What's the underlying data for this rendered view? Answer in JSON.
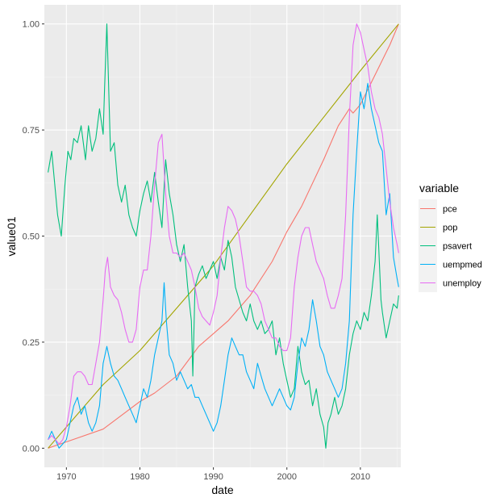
{
  "chart_data": {
    "type": "line",
    "title": "",
    "xlabel": "date",
    "ylabel": "value01",
    "xlim": [
      1967,
      2015.5
    ],
    "ylim": [
      0,
      1
    ],
    "x_ticks": [
      1970,
      1980,
      1990,
      2000,
      2010
    ],
    "x_tick_labels": [
      "1970",
      "1980",
      "1990",
      "2000",
      "2010"
    ],
    "y_ticks": [
      0,
      0.25,
      0.5,
      0.75,
      1
    ],
    "y_tick_labels": [
      "0.00",
      "0.25",
      "0.50",
      "0.75",
      "1.00"
    ],
    "legend": {
      "title": "variable",
      "position": "right"
    },
    "series": [
      {
        "name": "pce",
        "color": "#F8766D",
        "x": [
          1967.5,
          1970,
          1975,
          1980,
          1982,
          1985,
          1988,
          1990,
          1992,
          1995,
          1998,
          2000,
          2002,
          2005,
          2007,
          2008.5,
          2009,
          2010,
          2012,
          2014,
          2015.2
        ],
        "y": [
          0.0,
          0.015,
          0.045,
          0.11,
          0.13,
          0.17,
          0.24,
          0.27,
          0.3,
          0.36,
          0.44,
          0.51,
          0.57,
          0.68,
          0.76,
          0.8,
          0.79,
          0.81,
          0.88,
          0.95,
          1.0
        ]
      },
      {
        "name": "pop",
        "color": "#A3A500",
        "x": [
          1967.5,
          1970,
          1975,
          1980,
          1985,
          1990,
          1995,
          2000,
          2005,
          2010,
          2015.2
        ],
        "y": [
          0.0,
          0.05,
          0.15,
          0.23,
          0.33,
          0.43,
          0.55,
          0.67,
          0.78,
          0.89,
          1.0
        ]
      },
      {
        "name": "psavert",
        "color": "#00BF7D",
        "x": [
          1967.5,
          1968,
          1968.8,
          1969.3,
          1969.8,
          1970.2,
          1970.6,
          1971,
          1971.5,
          1972,
          1972.6,
          1973,
          1973.5,
          1974,
          1974.5,
          1975,
          1975.2,
          1975.5,
          1976,
          1976.5,
          1977,
          1977.5,
          1978,
          1978.5,
          1979,
          1979.5,
          1980,
          1980.5,
          1981,
          1981.5,
          1982,
          1982.5,
          1983,
          1983.5,
          1984,
          1984.5,
          1985,
          1985.5,
          1986,
          1986.5,
          1987,
          1987.2,
          1987.5,
          1988,
          1988.5,
          1989,
          1989.5,
          1990,
          1990.5,
          1991,
          1991.5,
          1992,
          1992.5,
          1993,
          1993.5,
          1994,
          1994.5,
          1995,
          1995.5,
          1996,
          1996.5,
          1997,
          1997.5,
          1998,
          1998.5,
          1999,
          1999.5,
          2000,
          2000.5,
          2001,
          2001.5,
          2002,
          2002.5,
          2003,
          2003.5,
          2004,
          2004.5,
          2005,
          2005.3,
          2005.6,
          2006,
          2006.5,
          2007,
          2007.5,
          2008,
          2008.5,
          2009,
          2009.5,
          2010,
          2010.5,
          2011,
          2011.5,
          2012,
          2012.3,
          2012.5,
          2012.8,
          2013,
          2013.5,
          2014,
          2014.5,
          2015,
          2015.2
        ],
        "y": [
          0.65,
          0.7,
          0.55,
          0.5,
          0.62,
          0.7,
          0.68,
          0.73,
          0.72,
          0.76,
          0.68,
          0.76,
          0.7,
          0.73,
          0.8,
          0.74,
          0.85,
          1.0,
          0.7,
          0.72,
          0.62,
          0.58,
          0.62,
          0.55,
          0.52,
          0.5,
          0.56,
          0.6,
          0.63,
          0.58,
          0.65,
          0.58,
          0.52,
          0.68,
          0.6,
          0.55,
          0.48,
          0.44,
          0.48,
          0.38,
          0.3,
          0.17,
          0.38,
          0.41,
          0.43,
          0.4,
          0.42,
          0.44,
          0.4,
          0.45,
          0.42,
          0.49,
          0.45,
          0.38,
          0.35,
          0.32,
          0.3,
          0.34,
          0.3,
          0.28,
          0.3,
          0.27,
          0.28,
          0.3,
          0.22,
          0.26,
          0.2,
          0.16,
          0.12,
          0.14,
          0.24,
          0.18,
          0.15,
          0.16,
          0.1,
          0.14,
          0.08,
          0.05,
          0.0,
          0.06,
          0.08,
          0.12,
          0.08,
          0.1,
          0.14,
          0.22,
          0.27,
          0.3,
          0.28,
          0.32,
          0.3,
          0.36,
          0.44,
          0.55,
          0.47,
          0.35,
          0.32,
          0.26,
          0.3,
          0.34,
          0.33,
          0.36
        ]
      },
      {
        "name": "uempmed",
        "color": "#00B0F6",
        "x": [
          1967.5,
          1968,
          1968.5,
          1969,
          1969.5,
          1970,
          1970.5,
          1971,
          1971.5,
          1972,
          1972.5,
          1973,
          1973.5,
          1974,
          1974.5,
          1975,
          1975.5,
          1976,
          1976.5,
          1977,
          1977.5,
          1978,
          1978.5,
          1979,
          1979.5,
          1980,
          1980.5,
          1981,
          1981.5,
          1982,
          1982.5,
          1983,
          1983.3,
          1983.6,
          1984,
          1984.5,
          1985,
          1985.5,
          1986,
          1986.5,
          1987,
          1987.5,
          1988,
          1988.5,
          1989,
          1989.5,
          1990,
          1990.5,
          1991,
          1991.5,
          1992,
          1992.5,
          1993,
          1993.5,
          1994,
          1994.5,
          1995,
          1995.5,
          1996,
          1996.5,
          1997,
          1997.5,
          1998,
          1998.5,
          1999,
          1999.5,
          2000,
          2000.5,
          2001,
          2001.5,
          2002,
          2002.5,
          2003,
          2003.5,
          2004,
          2004.5,
          2005,
          2005.5,
          2006,
          2006.5,
          2007,
          2007.5,
          2008,
          2008.5,
          2009,
          2009.5,
          2010,
          2010.5,
          2011,
          2011.5,
          2012,
          2012.5,
          2013,
          2013.5,
          2014,
          2014.5,
          2015,
          2015.2
        ],
        "y": [
          0.02,
          0.04,
          0.02,
          0.0,
          0.01,
          0.02,
          0.06,
          0.1,
          0.12,
          0.08,
          0.1,
          0.06,
          0.04,
          0.06,
          0.1,
          0.2,
          0.24,
          0.2,
          0.17,
          0.16,
          0.14,
          0.12,
          0.1,
          0.08,
          0.06,
          0.1,
          0.14,
          0.12,
          0.16,
          0.22,
          0.26,
          0.3,
          0.39,
          0.3,
          0.22,
          0.2,
          0.16,
          0.18,
          0.16,
          0.14,
          0.15,
          0.12,
          0.12,
          0.1,
          0.08,
          0.06,
          0.04,
          0.06,
          0.1,
          0.16,
          0.22,
          0.26,
          0.24,
          0.22,
          0.22,
          0.18,
          0.16,
          0.14,
          0.2,
          0.17,
          0.14,
          0.12,
          0.1,
          0.12,
          0.14,
          0.12,
          0.1,
          0.09,
          0.12,
          0.2,
          0.26,
          0.24,
          0.28,
          0.35,
          0.3,
          0.24,
          0.22,
          0.18,
          0.16,
          0.14,
          0.12,
          0.14,
          0.2,
          0.3,
          0.55,
          0.7,
          0.84,
          0.8,
          0.86,
          0.8,
          0.76,
          0.72,
          0.7,
          0.55,
          0.6,
          0.45,
          0.4,
          0.38
        ]
      },
      {
        "name": "unemploy",
        "color": "#E76BF3",
        "x": [
          1967.5,
          1968,
          1968.5,
          1969,
          1969.5,
          1970,
          1970.5,
          1971,
          1971.5,
          1972,
          1972.5,
          1973,
          1973.5,
          1974,
          1974.5,
          1975,
          1975.3,
          1975.6,
          1976,
          1976.5,
          1977,
          1977.5,
          1978,
          1978.5,
          1979,
          1979.5,
          1980,
          1980.5,
          1981,
          1981.5,
          1982,
          1982.5,
          1983,
          1983.5,
          1984,
          1984.5,
          1985,
          1985.5,
          1986,
          1986.5,
          1987,
          1987.5,
          1988,
          1988.5,
          1989,
          1989.5,
          1990,
          1990.5,
          1991,
          1991.5,
          1992,
          1992.5,
          1993,
          1993.5,
          1994,
          1994.5,
          1995,
          1995.5,
          1996,
          1996.5,
          1997,
          1997.5,
          1998,
          1998.5,
          1999,
          1999.5,
          2000,
          2000.5,
          2001,
          2001.5,
          2002,
          2002.5,
          2003,
          2003.5,
          2004,
          2004.5,
          2005,
          2005.5,
          2006,
          2006.5,
          2007,
          2007.5,
          2008,
          2008.5,
          2009,
          2009.5,
          2010,
          2010.5,
          2011,
          2011.5,
          2012,
          2012.5,
          2013,
          2013.5,
          2014,
          2014.5,
          2015,
          2015.2
        ],
        "y": [
          0.02,
          0.03,
          0.02,
          0.01,
          0.02,
          0.05,
          0.1,
          0.17,
          0.18,
          0.18,
          0.17,
          0.15,
          0.15,
          0.2,
          0.25,
          0.35,
          0.42,
          0.45,
          0.38,
          0.36,
          0.35,
          0.32,
          0.28,
          0.25,
          0.25,
          0.28,
          0.38,
          0.42,
          0.42,
          0.5,
          0.62,
          0.72,
          0.74,
          0.6,
          0.5,
          0.46,
          0.46,
          0.45,
          0.46,
          0.44,
          0.42,
          0.38,
          0.33,
          0.31,
          0.3,
          0.29,
          0.32,
          0.36,
          0.45,
          0.52,
          0.57,
          0.56,
          0.54,
          0.5,
          0.44,
          0.38,
          0.37,
          0.37,
          0.36,
          0.34,
          0.3,
          0.28,
          0.26,
          0.26,
          0.24,
          0.23,
          0.23,
          0.26,
          0.38,
          0.45,
          0.5,
          0.52,
          0.52,
          0.48,
          0.44,
          0.42,
          0.4,
          0.36,
          0.33,
          0.33,
          0.36,
          0.4,
          0.55,
          0.78,
          0.95,
          1.0,
          0.98,
          0.94,
          0.9,
          0.84,
          0.8,
          0.78,
          0.74,
          0.66,
          0.58,
          0.52,
          0.48,
          0.46
        ]
      }
    ]
  }
}
